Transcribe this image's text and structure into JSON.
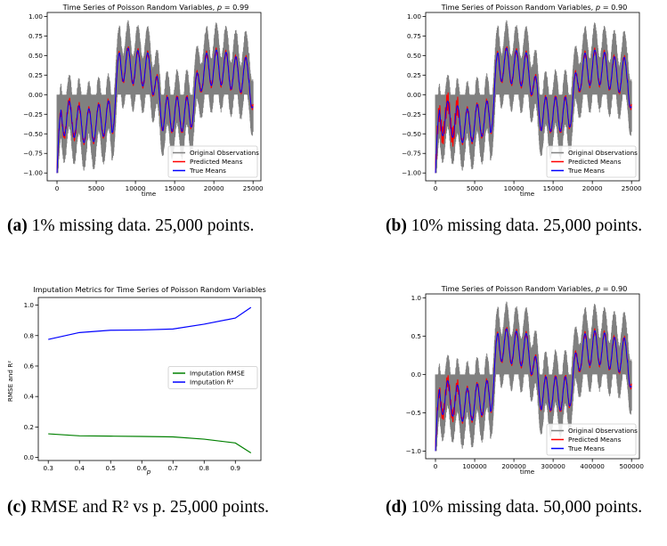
{
  "charts": [
    {
      "id": "a",
      "caption_tag": "(a)",
      "caption_text": "1% missing data. 25,000 points.",
      "chart_data": {
        "type": "line",
        "title": "Time Series of Poisson Random Variables, p = 0.99",
        "title_main": "Time Series of Poisson Random Variables, ",
        "title_var": "p",
        "title_value": " = 0.99",
        "xlabel": "time",
        "ylabel": "",
        "xlim": [
          -1250,
          26000
        ],
        "ylim": [
          -1.1,
          1.05
        ],
        "xticks": [
          0,
          5000,
          10000,
          15000,
          20000,
          25000
        ],
        "xtick_labels": [
          "0",
          "5000",
          "10000",
          "15000",
          "20000",
          "25000"
        ],
        "yticks": [
          -1.0,
          -0.75,
          -0.5,
          -0.25,
          0.0,
          0.25,
          0.5,
          0.75,
          1.0
        ],
        "ytick_labels": [
          "−1.00",
          "−0.75",
          "−0.50",
          "−0.25",
          "0.00",
          "0.25",
          "0.50",
          "0.75",
          "1.00"
        ],
        "x_max": 25000,
        "legend_position": "lower right",
        "series": [
          {
            "name": "Original Observations",
            "color": "#808080"
          },
          {
            "name": "Predicted Means",
            "color": "#ff0000"
          },
          {
            "name": "True Means",
            "color": "#0000ff"
          }
        ]
      }
    },
    {
      "id": "b",
      "caption_tag": "(b)",
      "caption_text": "10% missing data. 25,000 points.",
      "chart_data": {
        "type": "line",
        "title": "Time Series of Poisson Random Variables, p = 0.90",
        "title_main": "Time Series of Poisson Random Variables, ",
        "title_var": "p",
        "title_value": " = 0.90",
        "xlabel": "time",
        "ylabel": "",
        "xlim": [
          -1250,
          26000
        ],
        "ylim": [
          -1.1,
          1.05
        ],
        "xticks": [
          0,
          5000,
          10000,
          15000,
          20000,
          25000
        ],
        "xtick_labels": [
          "0",
          "5000",
          "10000",
          "15000",
          "20000",
          "25000"
        ],
        "yticks": [
          -1.0,
          -0.75,
          -0.5,
          -0.25,
          0.0,
          0.25,
          0.5,
          0.75,
          1.0
        ],
        "ytick_labels": [
          "−1.00",
          "−0.75",
          "−0.50",
          "−0.25",
          "0.00",
          "0.25",
          "0.50",
          "0.75",
          "1.00"
        ],
        "x_max": 25000,
        "legend_position": "lower right",
        "series": [
          {
            "name": "Original Observations",
            "color": "#808080"
          },
          {
            "name": "Predicted Means",
            "color": "#ff0000"
          },
          {
            "name": "True Means",
            "color": "#0000ff"
          }
        ]
      }
    },
    {
      "id": "c",
      "caption_tag": "(c)",
      "caption_text": "RMSE and R² vs p. 25,000 points.",
      "chart_data": {
        "type": "line",
        "title": "Imputation Metrics for Time Series of Poisson Random Variables",
        "xlabel": "p",
        "ylabel": "RMSE and R²",
        "xlim": [
          0.268,
          0.982
        ],
        "ylim": [
          -0.02,
          1.05
        ],
        "xticks": [
          0.3,
          0.4,
          0.5,
          0.6,
          0.7,
          0.8,
          0.9
        ],
        "xtick_labels": [
          "0.3",
          "0.4",
          "0.5",
          "0.6",
          "0.7",
          "0.8",
          "0.9"
        ],
        "yticks": [
          0.0,
          0.2,
          0.4,
          0.6,
          0.8,
          1.0
        ],
        "ytick_labels": [
          "0.0",
          "0.2",
          "0.4",
          "0.6",
          "0.8",
          "1.0"
        ],
        "legend_position": "center right",
        "x": [
          0.3,
          0.4,
          0.5,
          0.6,
          0.7,
          0.8,
          0.9,
          0.95
        ],
        "series": [
          {
            "name": "Imputation RMSE",
            "color": "#008000",
            "values": [
              0.155,
              0.142,
              0.14,
              0.138,
              0.135,
              0.12,
              0.095,
              0.03
            ]
          },
          {
            "name": "Imputation R²",
            "color": "#0000ff",
            "values": [
              0.775,
              0.82,
              0.835,
              0.837,
              0.843,
              0.875,
              0.915,
              0.985
            ]
          }
        ]
      }
    },
    {
      "id": "d",
      "caption_tag": "(d)",
      "caption_text": "10% missing data. 50,000 points.",
      "chart_data": {
        "type": "line",
        "title": "Time Series of Poisson Random Variables, p = 0.90",
        "title_main": "Time Series of Poisson Random Variables, ",
        "title_var": "p",
        "title_value": " = 0.90",
        "xlabel": "time",
        "ylabel": "",
        "xlim": [
          -25000,
          520000
        ],
        "ylim": [
          -1.1,
          1.05
        ],
        "xticks": [
          0,
          100000,
          200000,
          300000,
          400000,
          500000
        ],
        "xtick_labels": [
          "0",
          "100000",
          "200000",
          "300000",
          "400000",
          "500000"
        ],
        "yticks": [
          -1.0,
          -0.5,
          0.0,
          0.5,
          1.0
        ],
        "ytick_labels": [
          "−1.0",
          "−0.5",
          "0.0",
          "0.5",
          "1.0"
        ],
        "x_max": 500000,
        "legend_position": "lower right",
        "series": [
          {
            "name": "Original Observations",
            "color": "#808080"
          },
          {
            "name": "Predicted Means",
            "color": "#ff0000"
          },
          {
            "name": "True Means",
            "color": "#0000ff"
          }
        ]
      }
    }
  ]
}
